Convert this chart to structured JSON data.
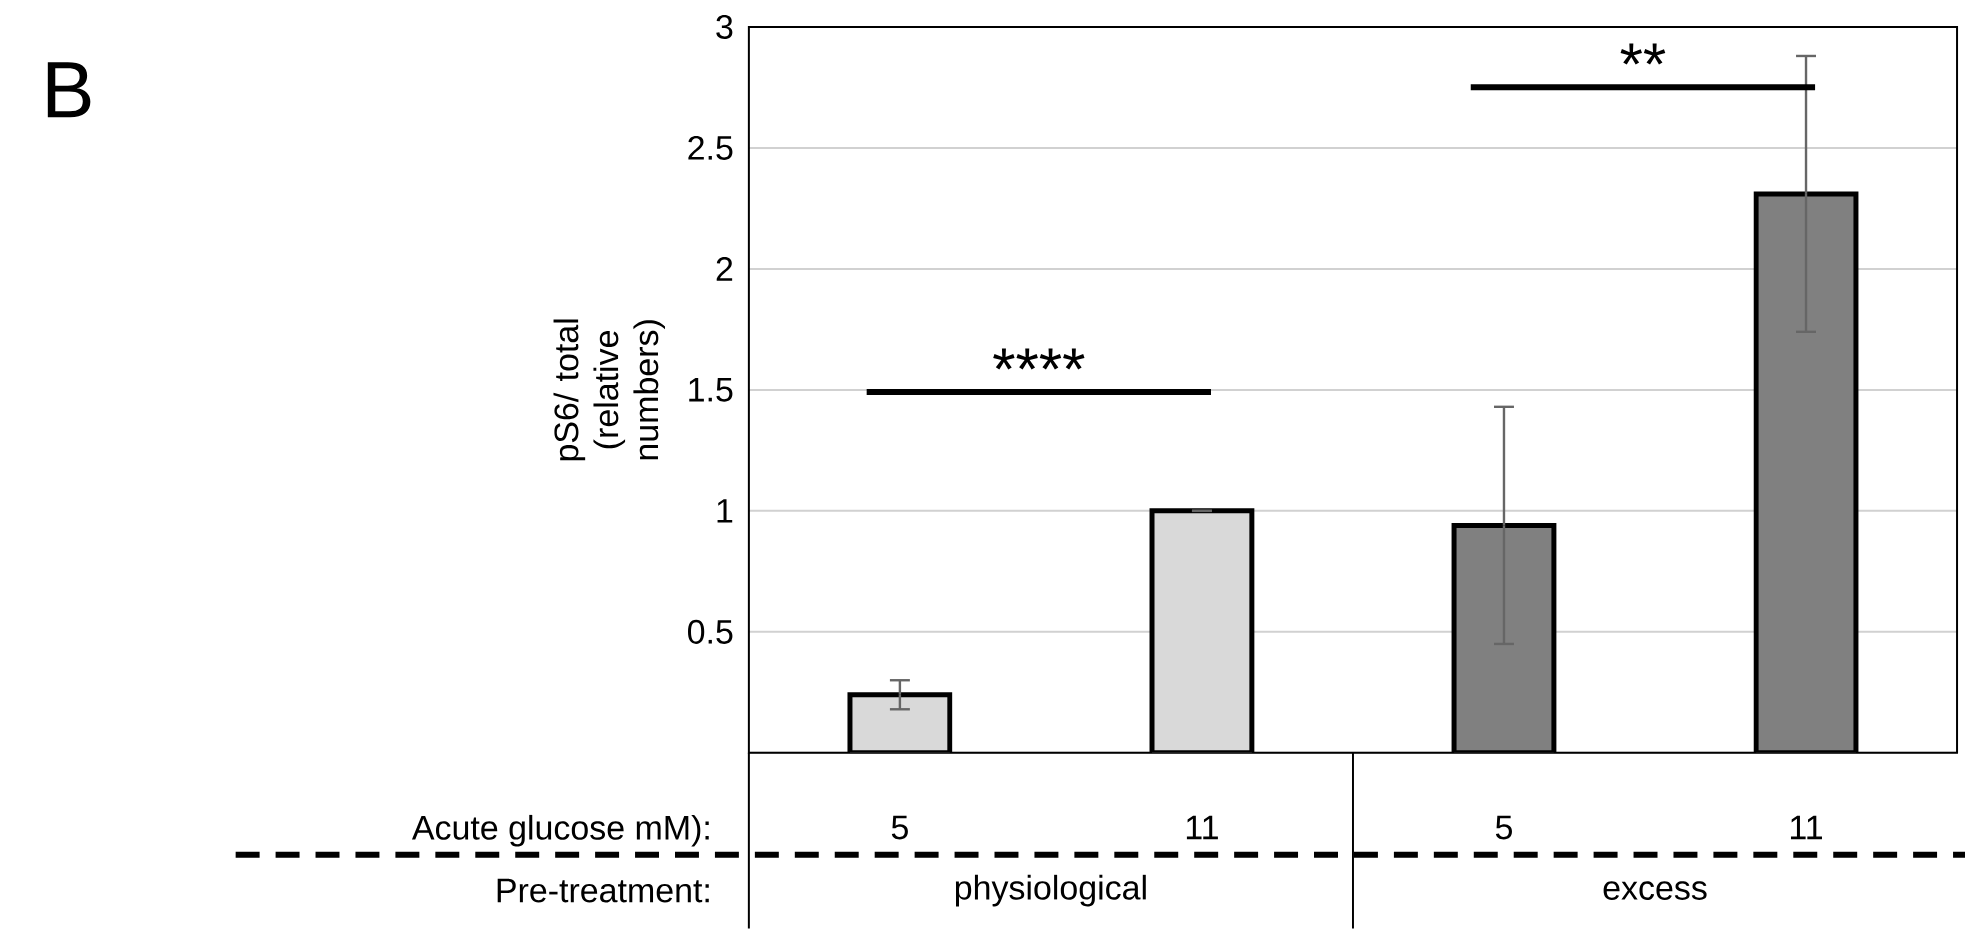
{
  "chart_data": {
    "type": "bar",
    "categories": [
      "5",
      "11",
      "5",
      "11"
    ],
    "values": [
      0.24,
      1.0,
      0.94,
      2.31
    ],
    "errors": [
      0.06,
      0,
      0.49,
      0.57
    ],
    "colors": [
      "#d9d9d9",
      "#d9d9d9",
      "#808080",
      "#808080"
    ],
    "ylabel": "pS6/ total (relative numbers)",
    "ylim": [
      0,
      3
    ],
    "yticks": [
      {
        "value": 0,
        "label": null
      },
      0.5,
      1,
      1.5,
      2,
      2.5,
      3
    ],
    "grid": "y",
    "annotations": [
      "B",
      "****",
      "**",
      "Acute glucose mM):",
      "Pre-treatment:",
      "physiological",
      "excess"
    ]
  }
}
